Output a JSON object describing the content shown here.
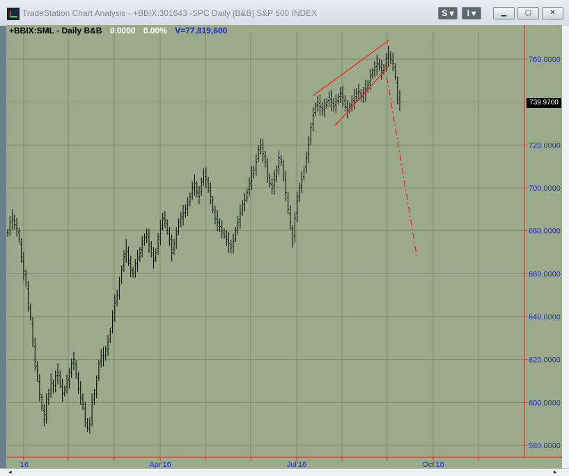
{
  "window": {
    "title": "TradeStation Chart Analysis - +BBIX:301643 -SPC Daily [B&B] S&P 500 INDEX",
    "style_button": "S",
    "indicator_button": "I"
  },
  "header": {
    "symbol": "+BBIX:SML - Daily  B&B",
    "change": "0.0000",
    "change_pct": "0.00%",
    "volume": "V=77,819,600"
  },
  "price_tag": "739.9700",
  "colors": {
    "plot_bg": "#9baa8b",
    "bars": "#000000",
    "axis": "#ff1a1a",
    "trendline": "#ff1a1a",
    "price_labels": "#1f2dc6"
  },
  "axes": {
    "y_labels": [
      "760.0000",
      "740.0000",
      "720.0000",
      "700.0000",
      "680.0000",
      "660.0000",
      "640.0000",
      "620.0000",
      "600.0000",
      "580.0000"
    ],
    "x_labels": [
      "'16",
      "Apr'16",
      "Jul'16",
      "Oct'16"
    ]
  },
  "chart_data": {
    "type": "bar",
    "y_ticks": [
      760,
      740,
      720,
      700,
      680,
      660,
      640,
      620,
      600,
      580
    ],
    "ylim": [
      577,
      786
    ],
    "x_ticks": [
      "'16",
      "Apr'16",
      "Jul'16",
      "Oct'16"
    ],
    "closes": [
      679,
      684,
      686,
      683,
      681,
      676,
      668,
      661,
      656,
      646,
      640,
      629,
      619,
      612,
      604,
      598,
      592,
      600,
      604,
      610,
      606,
      612,
      614,
      609,
      604,
      606,
      610,
      612,
      618,
      620,
      613,
      607,
      603,
      599,
      592,
      588,
      590,
      600,
      604,
      609,
      618,
      622,
      621,
      624,
      628,
      633,
      640,
      646,
      650,
      655,
      662,
      668,
      672,
      666,
      662,
      660,
      664,
      667,
      670,
      674,
      677,
      678,
      674,
      670,
      666,
      670,
      676,
      681,
      686,
      685,
      680,
      676,
      670,
      674,
      678,
      684,
      686,
      688,
      690,
      692,
      696,
      700,
      702,
      698,
      696,
      703,
      706,
      704,
      700,
      696,
      690,
      686,
      684,
      682,
      680,
      678,
      676,
      674,
      672,
      675,
      680,
      684,
      688,
      692,
      694,
      698,
      702,
      706,
      708,
      712,
      718,
      720,
      716,
      712,
      706,
      702,
      700,
      704,
      708,
      714,
      712,
      706,
      698,
      690,
      684,
      674,
      686,
      694,
      700,
      704,
      708,
      714,
      720,
      728,
      734,
      738,
      740,
      738,
      736,
      738,
      740,
      742,
      740,
      738,
      740,
      742,
      744,
      742,
      738,
      736,
      738,
      740,
      742,
      744,
      745,
      742,
      744,
      746,
      748,
      752,
      754,
      756,
      758,
      757,
      754,
      756,
      760,
      762,
      760,
      758,
      752,
      742,
      740
    ],
    "channel_upper": [
      [
        2016.53,
        743
      ],
      [
        2016.67,
        769
      ]
    ],
    "channel_lower": [
      [
        2016.57,
        729
      ],
      [
        2016.67,
        757
      ]
    ],
    "projection": [
      [
        2016.665,
        752
      ],
      [
        2016.72,
        668
      ]
    ]
  }
}
